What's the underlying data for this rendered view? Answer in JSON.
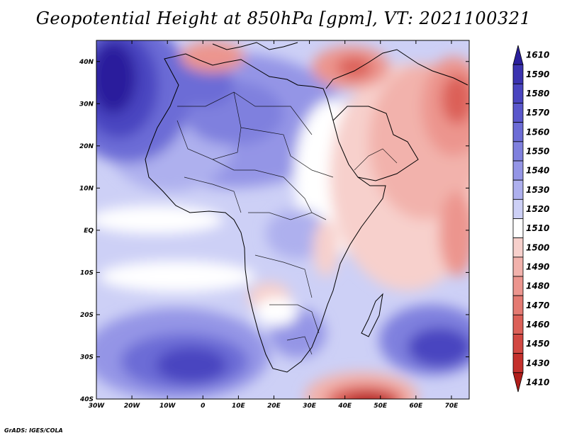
{
  "title": "Geopotential Height at 850hPa [gpm], VT: 2021100321",
  "footer": "GrADS: IGES/COLA",
  "map": {
    "lon_range": [
      -30,
      75
    ],
    "lat_range": [
      -40,
      45
    ],
    "lon_ticks": [
      {
        "value": -30,
        "label": "30W"
      },
      {
        "value": -20,
        "label": "20W"
      },
      {
        "value": -10,
        "label": "10W"
      },
      {
        "value": 0,
        "label": "0"
      },
      {
        "value": 10,
        "label": "10E"
      },
      {
        "value": 20,
        "label": "20E"
      },
      {
        "value": 30,
        "label": "30E"
      },
      {
        "value": 40,
        "label": "40E"
      },
      {
        "value": 50,
        "label": "50E"
      },
      {
        "value": 60,
        "label": "60E"
      },
      {
        "value": 70,
        "label": "70E"
      }
    ],
    "lat_ticks": [
      {
        "value": 40,
        "label": "40N"
      },
      {
        "value": 30,
        "label": "30N"
      },
      {
        "value": 20,
        "label": "20N"
      },
      {
        "value": 10,
        "label": "10N"
      },
      {
        "value": 0,
        "label": "EQ"
      },
      {
        "value": -10,
        "label": "10S"
      },
      {
        "value": -20,
        "label": "20S"
      },
      {
        "value": -30,
        "label": "30S"
      },
      {
        "value": -40,
        "label": "40S"
      }
    ]
  },
  "colorbar": {
    "levels": [
      {
        "label": "1610",
        "color": "#2a1f9c"
      },
      {
        "label": "1590",
        "color": "#3b33b0"
      },
      {
        "label": "1580",
        "color": "#4a45c0"
      },
      {
        "label": "1570",
        "color": "#5a57cc"
      },
      {
        "label": "1560",
        "color": "#6c6cd6"
      },
      {
        "label": "1550",
        "color": "#7f80de"
      },
      {
        "label": "1540",
        "color": "#9495e6"
      },
      {
        "label": "1530",
        "color": "#aeb0ee"
      },
      {
        "label": "1520",
        "color": "#cdd0f6"
      },
      {
        "label": "1510",
        "color": "#ffffff"
      },
      {
        "label": "1500",
        "color": "#f7d0cc"
      },
      {
        "label": "1490",
        "color": "#f2b2ac"
      },
      {
        "label": "1480",
        "color": "#ec958e"
      },
      {
        "label": "1470",
        "color": "#e47a72"
      },
      {
        "label": "1460",
        "color": "#dc6058"
      },
      {
        "label": "1450",
        "color": "#d24842"
      },
      {
        "label": "1430",
        "color": "#c4302c"
      },
      {
        "label": "1410",
        "color": "#b01d1a"
      }
    ]
  }
}
